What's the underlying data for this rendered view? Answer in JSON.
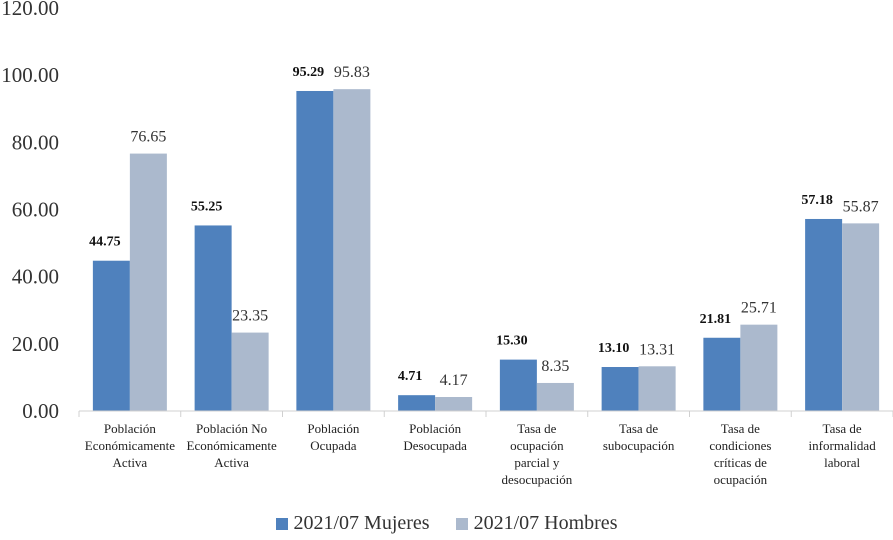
{
  "chart_data": {
    "type": "bar",
    "title": "",
    "xlabel": "",
    "ylabel": "",
    "ylim": [
      0,
      120
    ],
    "yticks": [
      "0.00",
      "20.00",
      "40.00",
      "60.00",
      "80.00",
      "100.00",
      "120.00"
    ],
    "grid": false,
    "legend_position": "bottom",
    "categories": [
      [
        "Población",
        "Económicamente",
        "Activa"
      ],
      [
        "Población No",
        "Económicamente",
        "Activa"
      ],
      [
        "Población",
        "Ocupada"
      ],
      [
        "Población",
        "Desocupada"
      ],
      [
        "Tasa de",
        "ocupación",
        "parcial y",
        "desocupación"
      ],
      [
        "Tasa de",
        "subocupación"
      ],
      [
        "Tasa de",
        "condiciones",
        "críticas de",
        "ocupación"
      ],
      [
        "Tasa de",
        "informalidad",
        "laboral"
      ]
    ],
    "series": [
      {
        "name": "2021/07 Mujeres",
        "color": "#4f81bd",
        "values": [
          44.75,
          55.25,
          95.29,
          4.71,
          15.3,
          13.1,
          21.81,
          57.18
        ],
        "labels": [
          "44.75",
          "55.25",
          "95.29",
          "4.71",
          "15.30",
          "13.10",
          "21.81",
          "57.18"
        ]
      },
      {
        "name": "2021/07 Hombres",
        "color": "#abb9cd",
        "values": [
          76.65,
          23.35,
          95.83,
          4.17,
          8.35,
          13.31,
          25.71,
          55.87
        ],
        "labels": [
          "76.65",
          "23.35",
          "95.83",
          "4.17",
          "8.35",
          "13.31",
          "25.71",
          "55.87"
        ]
      }
    ]
  }
}
